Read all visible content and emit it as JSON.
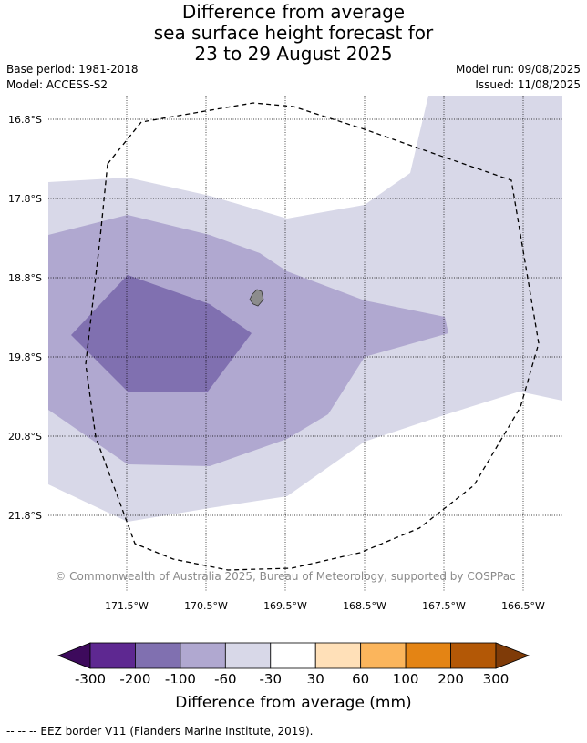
{
  "title": {
    "line1": "Difference from average",
    "line2": "sea surface height forecast for",
    "line3": "23 to 29 August 2025"
  },
  "meta": {
    "base_period": "Base period: 1981-2018",
    "model": "Model: ACCESS-S2",
    "model_run": "Model run: 09/08/2025",
    "issued": "Issued: 11/08/2025"
  },
  "map": {
    "lat_labels": [
      "16.8°S",
      "17.8°S",
      "18.8°S",
      "19.8°S",
      "20.8°S",
      "21.8°S"
    ],
    "lon_labels": [
      "171.5°W",
      "170.5°W",
      "169.5°W",
      "168.5°W",
      "167.5°W",
      "166.5°W"
    ],
    "copyright": "© Commonwealth of Australia 2025, Bureau of Meteorology, supported by COSPPac",
    "colors": {
      "c_neg60_30": "#d8d8e8",
      "c_neg100_60": "#b0a8d0",
      "c_neg200_100": "#8070b0",
      "island": "#8c8c8c"
    }
  },
  "colorbar": {
    "ticks": [
      "-300",
      "-200",
      "-100",
      "-60",
      "-30",
      "30",
      "60",
      "100",
      "200",
      "300"
    ],
    "colors": [
      "#3d0a5c",
      "#5e2891",
      "#8070b0",
      "#b0a8d0",
      "#d8d8e8",
      "#ffffff",
      "#ffe0b8",
      "#fbb55c",
      "#e48414",
      "#b35806",
      "#7f3b08"
    ],
    "label": "Difference from average (mm)"
  },
  "footer": "--  --  -- EEZ border V11 (Flanders Marine Institute, 2019)."
}
